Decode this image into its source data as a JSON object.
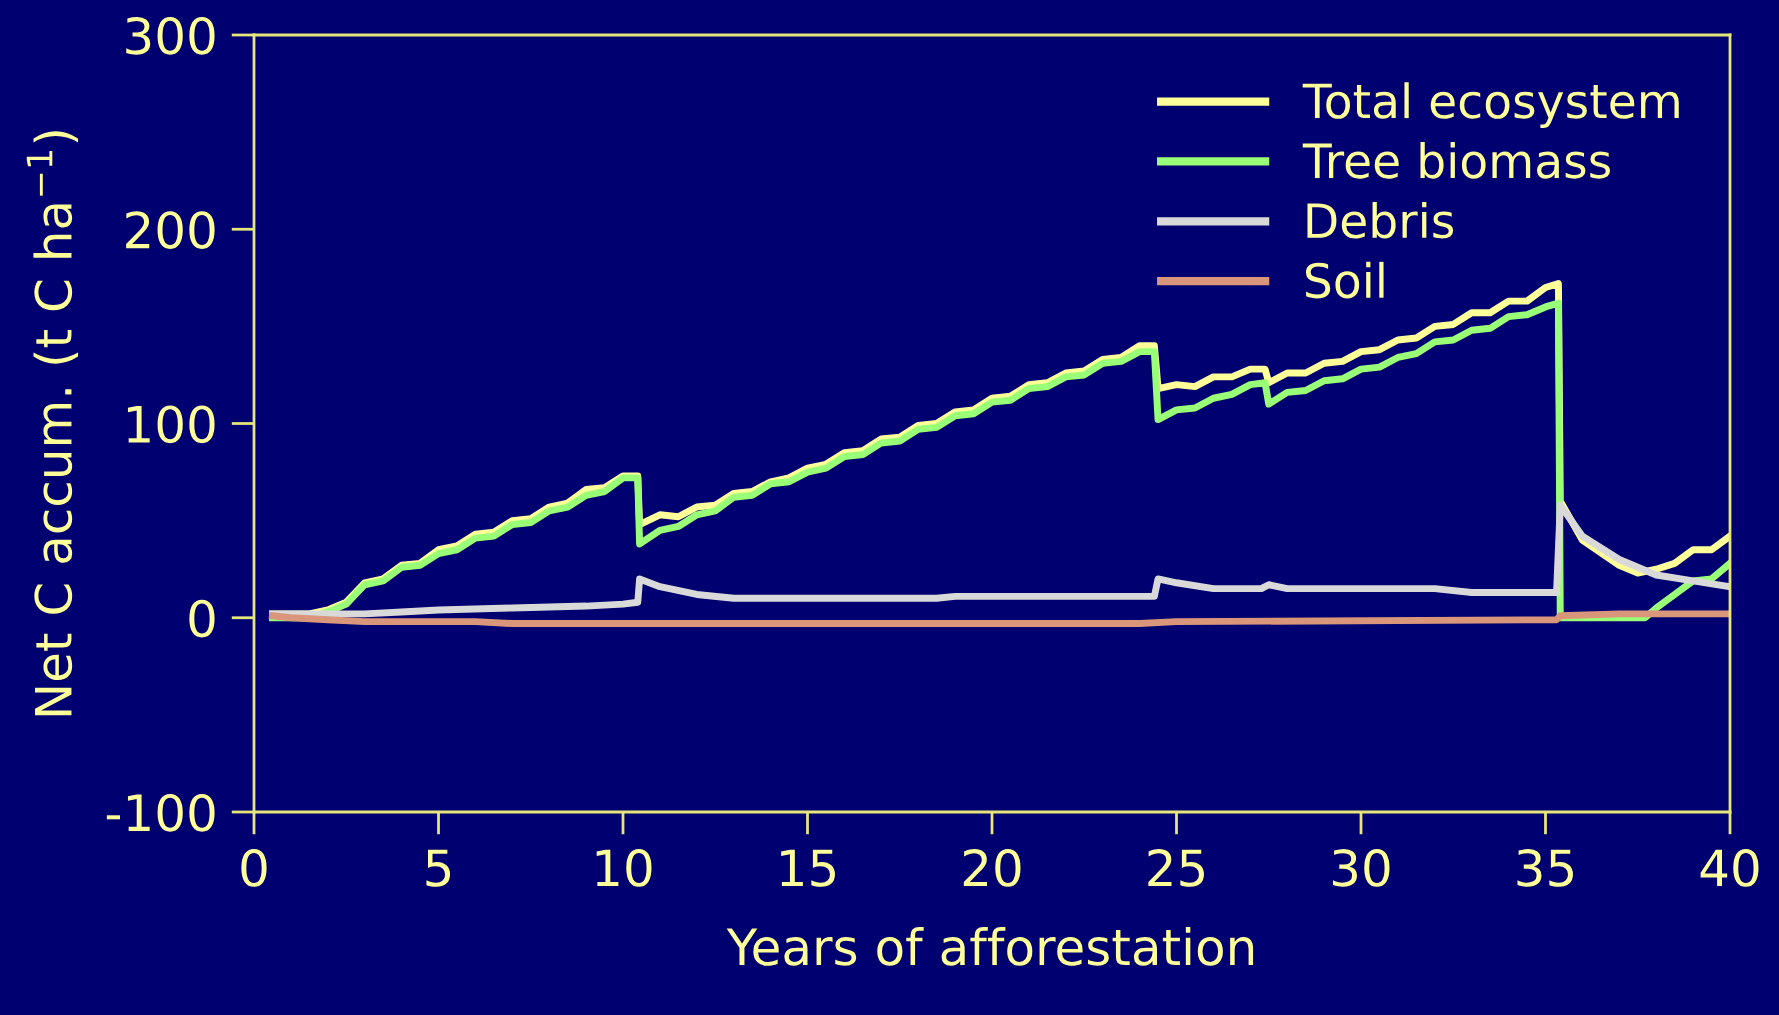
{
  "chart_data": {
    "type": "line",
    "xlabel": "Years of afforestation",
    "ylabel": "Net C accum. (t C ha$^{−1}$)",
    "xlim": [
      0,
      40
    ],
    "xticks": [
      0,
      5,
      10,
      15,
      20,
      25,
      30,
      35,
      40
    ],
    "ylim": [
      -100,
      300
    ],
    "yticks": [
      -100,
      0,
      100,
      200,
      300
    ],
    "grid": false,
    "legend": "top right",
    "line_style": "solid",
    "marker": "none",
    "series": [
      {
        "name": "Total ecosystem",
        "color": "#ffff99",
        "x": [
          0.5,
          1.5,
          2,
          2.5,
          3,
          3.5,
          4,
          4.5,
          5,
          5.5,
          6,
          6.5,
          7,
          7.5,
          8,
          8.5,
          9,
          9.5,
          10,
          10.4,
          10.45,
          11,
          11.5,
          12,
          12.5,
          13,
          13.5,
          14,
          14.5,
          15,
          15.5,
          16,
          16.5,
          17,
          17.5,
          18,
          18.5,
          19,
          19.5,
          20,
          20.5,
          21,
          21.5,
          22,
          22.5,
          23,
          23.5,
          24,
          24.4,
          24.5,
          25,
          25.5,
          26,
          26.5,
          27,
          27.4,
          27.5,
          28,
          28.5,
          29,
          29.5,
          30,
          30.5,
          31,
          31.5,
          32,
          32.5,
          33,
          33.5,
          34,
          34.5,
          35,
          35.35,
          35.4,
          36,
          37,
          37.5,
          38,
          38.5,
          39,
          39.5,
          40
        ],
        "values": [
          2,
          2,
          4,
          8,
          18,
          20,
          27,
          28,
          35,
          37,
          43,
          44,
          50,
          51,
          57,
          59,
          66,
          67,
          73,
          73,
          48,
          53,
          52,
          57,
          58,
          64,
          65,
          70,
          72,
          77,
          79,
          85,
          86,
          92,
          93,
          99,
          100,
          106,
          107,
          113,
          114,
          120,
          121,
          126,
          127,
          133,
          134,
          140,
          140,
          118,
          120,
          119,
          124,
          124,
          128,
          128,
          121,
          126,
          126,
          131,
          132,
          137,
          138,
          143,
          144,
          150,
          151,
          157,
          157,
          163,
          163,
          170,
          172,
          60,
          40,
          27,
          23,
          25,
          28,
          35,
          35,
          42
        ]
      },
      {
        "name": "Tree biomass",
        "color": "#99ff77",
        "x": [
          0.5,
          1.5,
          2,
          2.5,
          3,
          3.5,
          4,
          4.5,
          5,
          5.5,
          6,
          6.5,
          7,
          7.5,
          8,
          8.5,
          9,
          9.5,
          10,
          10.4,
          10.45,
          11,
          11.5,
          12,
          12.5,
          13,
          13.5,
          14,
          14.5,
          15,
          15.5,
          16,
          16.5,
          17,
          17.5,
          18,
          18.5,
          19,
          19.5,
          20,
          20.5,
          21,
          21.5,
          22,
          22.5,
          23,
          23.5,
          24,
          24.4,
          24.5,
          25,
          25.5,
          26,
          26.5,
          27,
          27.4,
          27.5,
          28,
          28.5,
          29,
          29.5,
          30,
          30.5,
          31,
          31.5,
          32,
          32.5,
          33,
          33.5,
          34,
          34.5,
          35,
          35.35,
          35.4,
          36,
          37,
          37.7,
          38,
          38.5,
          39,
          39.5,
          40
        ],
        "values": [
          0,
          0,
          3,
          7,
          17,
          19,
          26,
          27,
          33,
          35,
          41,
          42,
          48,
          49,
          55,
          57,
          63,
          65,
          72,
          72,
          38,
          45,
          47,
          53,
          55,
          62,
          63,
          69,
          70,
          75,
          77,
          83,
          84,
          90,
          91,
          97,
          98,
          104,
          105,
          111,
          112,
          118,
          119,
          124,
          125,
          131,
          132,
          137,
          137,
          102,
          107,
          108,
          113,
          115,
          120,
          121,
          110,
          116,
          117,
          122,
          123,
          128,
          129,
          134,
          136,
          142,
          143,
          148,
          149,
          155,
          156,
          160,
          162,
          0,
          0,
          0,
          0,
          5,
          12,
          19,
          20,
          28
        ]
      },
      {
        "name": "Debris",
        "color": "#d9d9d9",
        "x": [
          0.5,
          1.5,
          3,
          4,
          5,
          7,
          9,
          10,
          10.4,
          10.45,
          11,
          12,
          13,
          18.5,
          19,
          24.4,
          24.5,
          25,
          26,
          27.3,
          27.5,
          28,
          32,
          33,
          35.3,
          35.4,
          36,
          37,
          38,
          39,
          40
        ],
        "values": [
          2,
          2,
          2,
          3,
          4,
          5,
          6,
          7,
          8,
          20,
          16,
          12,
          10,
          10,
          11,
          11,
          20,
          18,
          15,
          15,
          17,
          15,
          15,
          13,
          13,
          58,
          42,
          30,
          22,
          19,
          16
        ]
      },
      {
        "name": "Soil",
        "color": "#d9967a",
        "x": [
          0.5,
          1,
          2,
          3,
          6,
          7,
          24,
          25,
          35.3,
          35.4,
          37,
          40
        ],
        "values": [
          1,
          0,
          -1,
          -2,
          -2,
          -3,
          -3,
          -2,
          -1,
          1,
          2,
          2
        ]
      }
    ]
  }
}
